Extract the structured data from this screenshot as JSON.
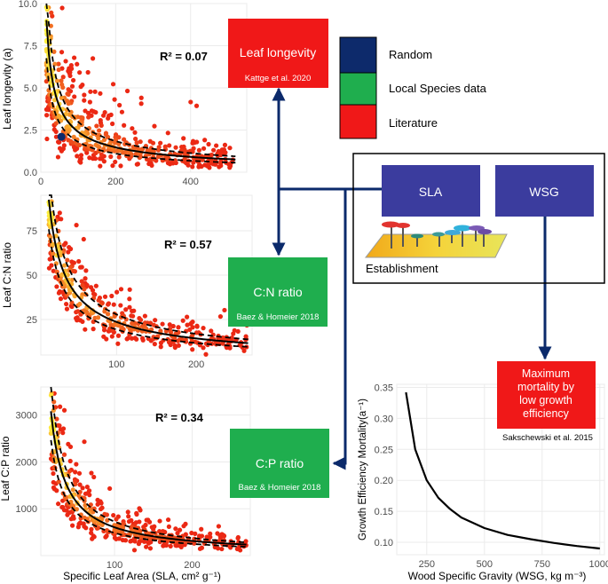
{
  "colors": {
    "random": "#0d2a6b",
    "local": "#1fae4e",
    "literature": "#f01818",
    "sla_box": "#3b3c9e",
    "arrow": "#0b2a6b"
  },
  "legend": [
    {
      "label": "Random",
      "color": "#0d2a6b"
    },
    {
      "label": "Local Species data",
      "color": "#1fae4e"
    },
    {
      "label": "Literature",
      "color": "#f01818"
    }
  ],
  "boxes": {
    "leaf_longevity": {
      "title": "Leaf longevity",
      "source": "Kattge et al. 2020"
    },
    "cn_ratio": {
      "title": "C:N ratio",
      "source": "Baez & Homeier 2018"
    },
    "cp_ratio": {
      "title": "C:P ratio",
      "source": "Baez & Homeier 2018"
    },
    "sla": {
      "title": "SLA"
    },
    "wsg": {
      "title": "WSG"
    },
    "establishment": {
      "label": "Establishment"
    },
    "mortality": {
      "title": "Maximum mortality by low growth efficiency",
      "source": "Sakschewski et al. 2015"
    }
  },
  "chart_data": [
    {
      "type": "scatter",
      "id": "leaf_longevity",
      "ylabel": "Leaf longevity (a)",
      "xlabel": "",
      "annotation": "R² = 0.07",
      "x_ticks": [
        "0",
        "200",
        "400"
      ],
      "y_ticks": [
        "0.0",
        "2.5",
        "5.0",
        "7.5",
        "10.0"
      ],
      "xlim": [
        0,
        550
      ],
      "ylim": [
        0,
        10
      ],
      "fit": {
        "form": "power",
        "a": 60,
        "b": -0.7
      },
      "band_factor": 0.25
    },
    {
      "type": "scatter",
      "id": "cn_ratio",
      "ylabel": "Leaf C:N ratio",
      "xlabel": "",
      "annotation": "R² = 0.57",
      "x_ticks": [
        "100",
        "200"
      ],
      "y_ticks": [
        "25",
        "50",
        "75"
      ],
      "xlim": [
        5,
        270
      ],
      "ylim": [
        5,
        95
      ],
      "fit": {
        "form": "power",
        "a": 650,
        "b": -0.72
      },
      "band_factor": 0.18
    },
    {
      "type": "scatter",
      "id": "cp_ratio",
      "ylabel": "Leaf C:P ratio",
      "xlabel": "Specific Leaf Area (SLA, cm² g⁻¹)",
      "annotation": "R² = 0.34",
      "x_ticks": [
        "100",
        "200"
      ],
      "y_ticks": [
        "1000",
        "2000",
        "3000"
      ],
      "xlim": [
        5,
        275
      ],
      "ylim": [
        0,
        3600
      ],
      "fit": {
        "form": "power",
        "a": 48000,
        "b": -0.95
      },
      "band_factor": 0.2
    },
    {
      "type": "line",
      "id": "growth_efficiency",
      "ylabel": "Growth Efficiency Mortality(a⁻¹)",
      "xlabel": "Wood Specific Gravity (WSG, kg m⁻³)",
      "x_ticks": [
        "250",
        "500",
        "750",
        "1000"
      ],
      "y_ticks": [
        "0.10",
        "0.15",
        "0.20",
        "0.25",
        "0.30",
        "0.35"
      ],
      "xlim": [
        120,
        1020
      ],
      "ylim": [
        0.08,
        0.355
      ],
      "curve": {
        "x": [
          160,
          200,
          250,
          300,
          350,
          400,
          500,
          600,
          700,
          800,
          900,
          1000
        ],
        "y": [
          0.342,
          0.25,
          0.2,
          0.172,
          0.154,
          0.14,
          0.123,
          0.112,
          0.105,
          0.099,
          0.094,
          0.09
        ]
      }
    }
  ]
}
